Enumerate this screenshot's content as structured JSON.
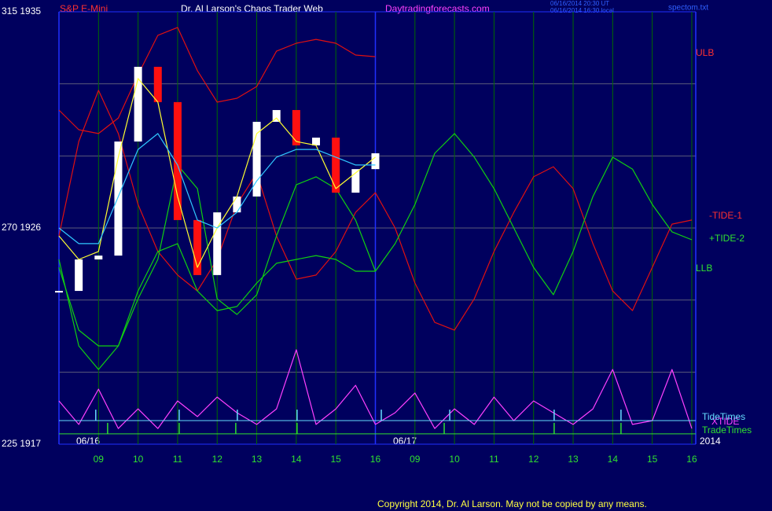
{
  "chart_data": {
    "type": "line",
    "title": "Dr. Al Larson's Chaos Trader Web",
    "instrument": "S&P E-Mini",
    "site": "Daytradingforecasts.com",
    "timestamps": [
      "06/16/2014 20:30 UT",
      "06/16/2014 16:30 local"
    ],
    "file": "spectom.txt",
    "copyright": "Copyright 2014, Dr. Al Larson. May not be copied by any means.",
    "dates": [
      "06/16",
      "06/17",
      "2014"
    ],
    "xlim": [
      0,
      16.1
    ],
    "xticks": [
      {
        "value": 1,
        "label": "09"
      },
      {
        "value": 2,
        "label": "10"
      },
      {
        "value": 3,
        "label": "11"
      },
      {
        "value": 4,
        "label": "12"
      },
      {
        "value": 5,
        "label": "13"
      },
      {
        "value": 6,
        "label": "14"
      },
      {
        "value": 7,
        "label": "15"
      },
      {
        "value": 8,
        "label": "16"
      },
      {
        "value": 9,
        "label": "09"
      },
      {
        "value": 10,
        "label": "10"
      },
      {
        "value": 11,
        "label": "11"
      },
      {
        "value": 12,
        "label": "12"
      },
      {
        "value": 13,
        "label": "13"
      },
      {
        "value": 14,
        "label": "14"
      },
      {
        "value": 15,
        "label": "15"
      },
      {
        "value": 16,
        "label": "16"
      }
    ],
    "day_breaks": [
      0,
      8,
      16.1
    ],
    "ylim": [
      1917,
      1935
    ],
    "yticks": [
      {
        "value": 1917,
        "label": "225 1917"
      },
      {
        "value": 1926,
        "label": "270 1926"
      },
      {
        "value": 1935,
        "label": "315 1935"
      }
    ],
    "grid_lines": [
      1932,
      1929,
      1923,
      1920
    ],
    "x": [
      0,
      0.5,
      1,
      1.5,
      2,
      2.5,
      3,
      3.5,
      4,
      4.5,
      5,
      5.5,
      6,
      6.5,
      7,
      7.5,
      8,
      8.5,
      9,
      9.5,
      10,
      10.5,
      11,
      11.5,
      12,
      12.5,
      13,
      13.5,
      14,
      14.5,
      15,
      15.5,
      16
    ],
    "series": [
      {
        "name": "ULB",
        "color": "#e01010",
        "values": [
          1930.91,
          1930.09,
          1929.93,
          1930.58,
          1932.38,
          1934.02,
          1934.35,
          1932.55,
          1931.24,
          1931.4,
          1931.89,
          1933.36,
          1933.69,
          1933.85,
          1933.69,
          1933.2,
          1933.13,
          null,
          null,
          null,
          null,
          null,
          null,
          null,
          null,
          null,
          null,
          null,
          null,
          null,
          null,
          null,
          null
        ]
      },
      {
        "name": "-TIDE-1",
        "color": "#e01010",
        "values": [
          1925.67,
          1929.6,
          1931.73,
          1929.93,
          1926.98,
          1925.02,
          1924.04,
          1923.38,
          1924.69,
          1926.98,
          1928.29,
          1925.67,
          1923.87,
          1924.04,
          1925.02,
          1926.65,
          1927.47,
          1926.0,
          1923.71,
          1922.07,
          1921.75,
          1923.05,
          1925.02,
          1926.65,
          1928.13,
          1928.55,
          1927.64,
          1925.35,
          1923.38,
          1922.56,
          1924.36,
          1926.16,
          1926.33
        ]
      },
      {
        "name": "+TIDE-2",
        "color": "#10d010",
        "values": [
          1924.69,
          1921.09,
          1920.11,
          1921.09,
          1923.05,
          1924.69,
          1928.62,
          1927.64,
          1923.05,
          1922.4,
          1923.22,
          1925.67,
          1927.8,
          1928.13,
          1927.64,
          1926.33,
          1924.2,
          1925.35,
          1926.98,
          1929.11,
          1929.93,
          1928.95,
          1927.64,
          1926.0,
          1924.36,
          1923.22,
          1925.02,
          1927.31,
          1928.95,
          1928.45,
          1926.98,
          1925.84,
          1925.51
        ]
      },
      {
        "name": "LLB",
        "color": "#10d010",
        "values": [
          1924.36,
          1921.75,
          1921.09,
          1921.09,
          1923.38,
          1925.02,
          1925.35,
          1923.38,
          1922.56,
          1922.73,
          1923.71,
          1924.53,
          1924.69,
          1924.85,
          1924.69,
          1924.2,
          1924.2,
          null,
          null,
          null,
          null,
          null,
          null,
          null,
          null,
          null,
          null,
          null,
          null,
          null,
          null,
          null,
          null
        ]
      },
      {
        "style": "candle",
        "color": "#ffffff",
        "down_color": "#ff1010",
        "values": [
          1923.38,
          1924.69,
          1924.85,
          1929.6,
          1932.71,
          1931.24,
          1926.33,
          1924.04,
          1926.65,
          1927.31,
          1930.42,
          1930.91,
          1929.44,
          1929.76,
          1927.47,
          1928.45,
          1929.11,
          null,
          null,
          null,
          null,
          null,
          null,
          null,
          null,
          null,
          null,
          null,
          null,
          null,
          null,
          null,
          null
        ]
      },
      {
        "color": "#ffff30",
        "values": [
          1925.67,
          1924.69,
          1925.02,
          1928.95,
          1932.22,
          1931.24,
          1927.31,
          1924.36,
          1926.0,
          1927.31,
          1929.93,
          1930.58,
          1929.6,
          1929.44,
          1927.64,
          1928.29,
          1928.95,
          null,
          null,
          null,
          null,
          null,
          null,
          null,
          null,
          null,
          null,
          null,
          null,
          null,
          null,
          null,
          null
        ]
      },
      {
        "color": "#30c8ff",
        "values": [
          1926.0,
          1925.35,
          1925.35,
          1927.31,
          1929.27,
          1929.93,
          1928.62,
          1926.33,
          1926.0,
          1926.65,
          1927.96,
          1928.95,
          1929.27,
          1929.27,
          1928.95,
          1928.62,
          1928.62,
          null,
          null,
          null,
          null,
          null,
          null,
          null,
          null,
          null,
          null,
          null,
          null,
          null,
          null,
          null,
          null
        ]
      },
      {
        "name": "XTIDE",
        "color": "#ff40ff",
        "values": [
          1918.8,
          1917.82,
          1919.29,
          1917.65,
          1918.47,
          1917.65,
          1918.8,
          1918.15,
          1918.96,
          1918.31,
          1917.82,
          1918.47,
          1920.93,
          1917.82,
          1918.47,
          1919.45,
          1917.82,
          1918.31,
          1919.13,
          1917.65,
          1918.47,
          1917.82,
          1918.96,
          1917.98,
          1918.8,
          1918.31,
          1917.82,
          1918.47,
          1920.11,
          1917.82,
          1917.98,
          1920.11,
          1917.65
        ]
      }
    ],
    "events": [
      {
        "name": "TideTimes",
        "color": "#66ddff",
        "level": 1917.98,
        "x": [
          0.93,
          3.04,
          4.51,
          6.02,
          8.15,
          9.88,
          12.52,
          14.21
        ]
      },
      {
        "name": "TradeTimes",
        "color": "#30e030",
        "level": 1917.43,
        "x": [
          1.23,
          3.04,
          4.47,
          6.02,
          9.74,
          12.52,
          14.21
        ]
      }
    ]
  }
}
